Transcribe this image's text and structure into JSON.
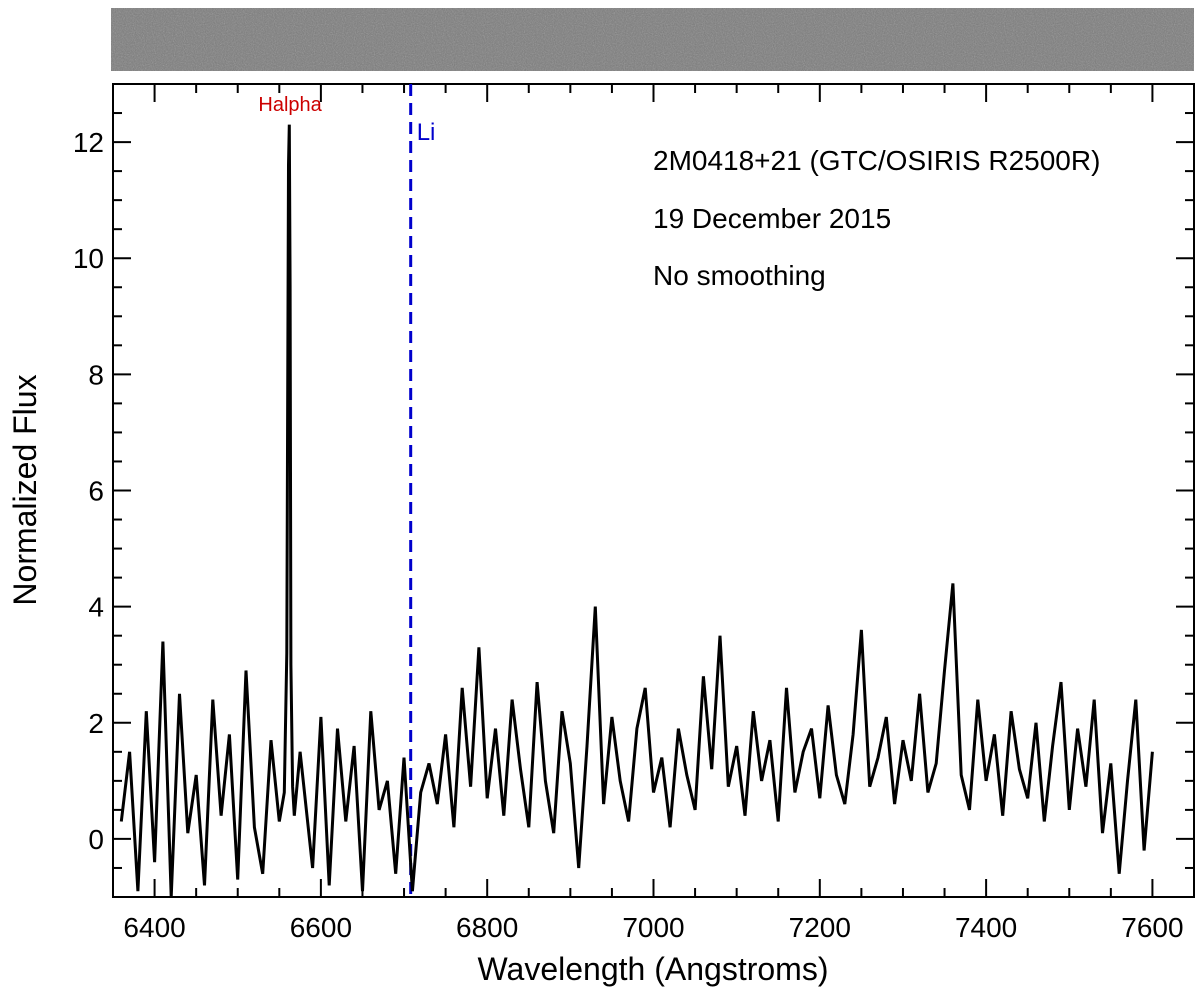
{
  "chart_data": {
    "type": "line",
    "xlabel": "Wavelength (Angstroms)",
    "ylabel": "Normalized Flux",
    "xlim": [
      6350,
      7650
    ],
    "ylim": [
      -1,
      13
    ],
    "x_ticks": [
      6400,
      6600,
      6800,
      7000,
      7200,
      7400,
      7600
    ],
    "y_ticks": [
      0,
      2,
      4,
      6,
      8,
      10,
      12
    ],
    "x_tick_labels": [
      "6400",
      "6600",
      "6800",
      "7000",
      "7200",
      "7400",
      "7600"
    ],
    "y_tick_labels": [
      "0",
      "2",
      "4",
      "6",
      "8",
      "10",
      "12"
    ],
    "x_minor_step": 50,
    "y_minor_step": 0.5,
    "grid": false,
    "annotations": [
      "2M0418+21 (GTC/OSIRIS R2500R)",
      "19 December 2015",
      "No smoothing"
    ],
    "lines": [
      {
        "label": "Halpha",
        "x": 6563,
        "color": "#cc0000"
      },
      {
        "label": "Li",
        "x": 6708,
        "color": "#0000cc",
        "style": "dashed"
      }
    ],
    "spectrum_image": {
      "present": true,
      "color": "#7a7a7a"
    },
    "series": [
      {
        "color": "#000000",
        "x": [
          6360,
          6370,
          6380,
          6390,
          6400,
          6410,
          6420,
          6430,
          6440,
          6450,
          6460,
          6470,
          6480,
          6490,
          6500,
          6510,
          6520,
          6530,
          6540,
          6550,
          6556,
          6559,
          6561,
          6562,
          6563,
          6564,
          6566,
          6568,
          6575,
          6590,
          6600,
          6610,
          6620,
          6630,
          6640,
          6650,
          6660,
          6670,
          6680,
          6690,
          6700,
          6710,
          6720,
          6730,
          6740,
          6750,
          6760,
          6770,
          6780,
          6790,
          6800,
          6810,
          6820,
          6830,
          6840,
          6850,
          6860,
          6870,
          6880,
          6890,
          6900,
          6910,
          6920,
          6930,
          6940,
          6950,
          6960,
          6970,
          6980,
          6990,
          7000,
          7010,
          7020,
          7030,
          7040,
          7050,
          7060,
          7070,
          7080,
          7090,
          7100,
          7110,
          7120,
          7130,
          7140,
          7150,
          7160,
          7170,
          7180,
          7190,
          7200,
          7210,
          7220,
          7230,
          7240,
          7250,
          7260,
          7270,
          7280,
          7290,
          7300,
          7310,
          7320,
          7330,
          7340,
          7350,
          7360,
          7370,
          7380,
          7390,
          7400,
          7410,
          7420,
          7430,
          7440,
          7450,
          7460,
          7470,
          7480,
          7490,
          7500,
          7510,
          7520,
          7530,
          7540,
          7550,
          7560,
          7570,
          7580,
          7590,
          7600
        ],
        "y": [
          0.3,
          1.5,
          -0.9,
          2.2,
          -0.4,
          3.4,
          -1.0,
          2.5,
          0.1,
          1.1,
          -0.8,
          2.4,
          0.4,
          1.8,
          -0.7,
          2.9,
          0.2,
          -0.6,
          1.7,
          0.3,
          0.8,
          3.2,
          11.6,
          12.3,
          9.5,
          3.0,
          0.9,
          0.4,
          1.5,
          -0.5,
          2.1,
          -0.8,
          1.9,
          0.3,
          1.6,
          -0.9,
          2.2,
          0.5,
          1.0,
          -0.6,
          1.4,
          -0.9,
          0.8,
          1.3,
          0.6,
          1.8,
          0.2,
          2.6,
          0.9,
          3.3,
          0.7,
          1.9,
          0.4,
          2.4,
          1.2,
          0.2,
          2.7,
          1.0,
          0.1,
          2.2,
          1.3,
          -0.5,
          1.6,
          4.0,
          0.6,
          2.1,
          1.0,
          0.3,
          1.9,
          2.6,
          0.8,
          1.4,
          0.2,
          1.9,
          1.1,
          0.5,
          2.8,
          1.2,
          3.5,
          0.9,
          1.6,
          0.4,
          2.2,
          1.0,
          1.7,
          0.3,
          2.6,
          0.8,
          1.5,
          1.9,
          0.7,
          2.3,
          1.1,
          0.6,
          1.8,
          3.6,
          0.9,
          1.4,
          2.1,
          0.6,
          1.7,
          1.0,
          2.5,
          0.8,
          1.3,
          2.9,
          4.4,
          1.1,
          0.5,
          2.4,
          1.0,
          1.8,
          0.4,
          2.2,
          1.2,
          0.7,
          2.0,
          0.3,
          1.6,
          2.7,
          0.5,
          1.9,
          0.9,
          2.4,
          0.1,
          1.3,
          -0.6,
          1.0,
          2.4,
          -0.2,
          1.5
        ]
      }
    ]
  }
}
